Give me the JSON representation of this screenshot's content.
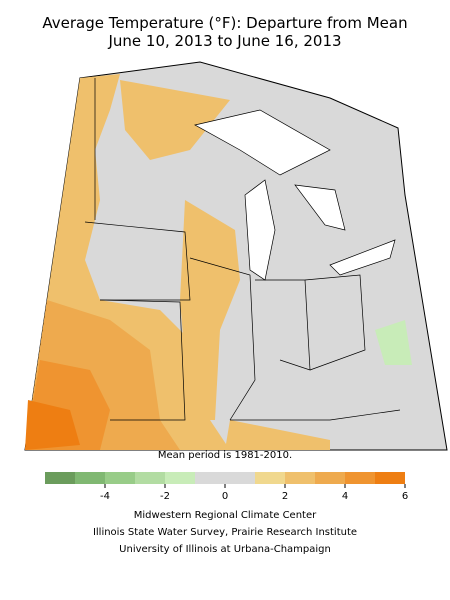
{
  "title": [
    "Average Temperature (°F): Departure from Mean",
    "June 10, 2013 to June 16, 2013"
  ],
  "note": "Mean period is 1981-2010.",
  "legend": {
    "bins": [
      -6,
      -5,
      -4,
      -3,
      -2,
      -1,
      0,
      1,
      2,
      3,
      4,
      5,
      6
    ],
    "colors": [
      "#6b9c5c",
      "#80b872",
      "#98cc88",
      "#b2dca2",
      "#c8ecb8",
      "#d9d9d9",
      "#d9d9d9",
      "#f0d88e",
      "#efc06c",
      "#eeaa4e",
      "#ef9430",
      "#ee7e12"
    ],
    "ticks": [
      -4,
      -2,
      0,
      2,
      4,
      6
    ]
  },
  "credits": [
    "Midwestern Regional Climate Center",
    "Illinois State Water Survey, Prairie Research Institute",
    "University of Illinois at Urbana-Champaign"
  ]
}
